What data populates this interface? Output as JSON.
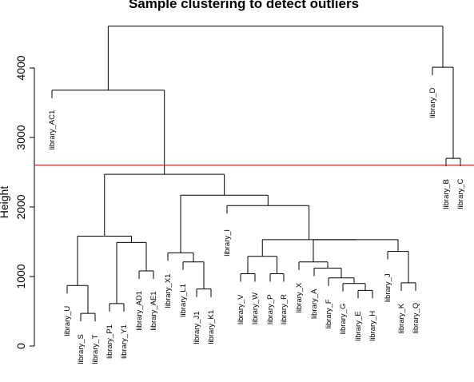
{
  "chart_data": {
    "type": "dendrogram",
    "title": "Sample clustering to detect outliers",
    "xlabel": "",
    "ylabel": "Height",
    "ylim": [
      0,
      4800
    ],
    "yticks": [
      0,
      1000,
      2000,
      3000,
      4000
    ],
    "cut_height": 2600,
    "cut_color": "#cc0000",
    "leaves": [
      "library_AC1",
      "library_U",
      "library_S",
      "library_T",
      "library_P1",
      "library_Y1",
      "library_AD1",
      "library_AE1",
      "library_X1",
      "library_L1",
      "library_J1",
      "library_K1",
      "library_I",
      "library_V",
      "library_W",
      "library_P",
      "library_R",
      "library_X",
      "library_A",
      "library_F",
      "library_G",
      "library_E",
      "library_H",
      "library_J",
      "library_K",
      "library_Q",
      "library_D",
      "library_B",
      "library_C"
    ],
    "merges": [
      {
        "left": "library_S",
        "right": "library_T",
        "height": 470
      },
      {
        "left": "library_U",
        "right": 1,
        "height": 870
      },
      {
        "left": "library_P1",
        "right": "library_Y1",
        "height": 610
      },
      {
        "left": "library_AD1",
        "right": "library_AE1",
        "height": 1080
      },
      {
        "left": 3,
        "right": 4,
        "height": 1490
      },
      {
        "left": 2,
        "right": 5,
        "height": 1580
      },
      {
        "left": "library_J1",
        "right": "library_K1",
        "height": 820
      },
      {
        "left": "library_L1",
        "right": 7,
        "height": 1210
      },
      {
        "left": "library_X1",
        "right": 8,
        "height": 1340
      },
      {
        "left": "library_V",
        "right": "library_W",
        "height": 1040
      },
      {
        "left": "library_P",
        "right": "library_R",
        "height": 1040
      },
      {
        "left": 10,
        "right": 11,
        "height": 1290
      },
      {
        "left": "library_E",
        "right": "library_H",
        "height": 800
      },
      {
        "left": 13,
        "right": "library_G",
        "height": 900
      },
      {
        "left": "library_F",
        "right": 14,
        "height": 980
      },
      {
        "left": "library_A",
        "right": 15,
        "height": 1120
      },
      {
        "left": "library_X",
        "right": 16,
        "height": 1210
      },
      {
        "left": "library_K",
        "right": "library_Q",
        "height": 910
      },
      {
        "left": "library_J",
        "right": 18,
        "height": 1360
      },
      {
        "left": 17,
        "right": 19,
        "height": 1530
      },
      {
        "left": 12,
        "right": 20,
        "height": 1530
      },
      {
        "left": "library_I",
        "right": 21,
        "height": 2020
      },
      {
        "left": 9,
        "right": 22,
        "height": 2170
      },
      {
        "left": 6,
        "right": 23,
        "height": 2470
      },
      {
        "left": "library_AC1",
        "right": 24,
        "height": 3680
      },
      {
        "left": "library_B",
        "right": "library_C",
        "height": 2700
      },
      {
        "left": "library_D",
        "right": 26,
        "height": 4010
      },
      {
        "left": 25,
        "right": 27,
        "height": 4600
      }
    ]
  }
}
